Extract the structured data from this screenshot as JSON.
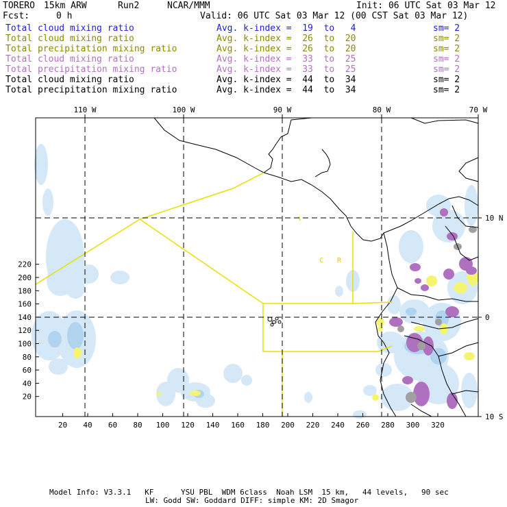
{
  "header": {
    "model": "TORERO",
    "resolution": "15km ARW",
    "run": "Run2",
    "org": "NCAR/MMM",
    "init": "Init: 06 UTC Sat 03 Mar 12",
    "fcst_label": "Fcst:",
    "fcst_value": "0 h",
    "valid": "Valid: 06 UTC Sat 03 Mar 12 (00 CST Sat 03 Mar 12)"
  },
  "legend": [
    {
      "field": "Total cloud mixing ratio",
      "kindex": "Avg. k-index =  19  to   4",
      "sm": "sm= 2",
      "color": "#1f1fcf"
    },
    {
      "field": "Total cloud mixing ratio",
      "kindex": "Avg. k-index =  26  to  20",
      "sm": "sm= 2",
      "color": "#8a8a00"
    },
    {
      "field": "Total precipitation mixing ratio",
      "kindex": "Avg. k-index =  26  to  20",
      "sm": "sm= 2",
      "color": "#8a8a00"
    },
    {
      "field": "Total cloud mixing ratio",
      "kindex": "Avg. k-index =  33  to  25",
      "sm": "sm= 2",
      "color": "#b070c0"
    },
    {
      "field": "Total precipitation mixing ratio",
      "kindex": "Avg. k-index =  33  to  25",
      "sm": "sm= 2",
      "color": "#b070c0"
    },
    {
      "field": "Total cloud mixing ratio",
      "kindex": "Avg. k-index =  44  to  34",
      "sm": "sm= 2",
      "color": "#000000"
    },
    {
      "field": "Total precipitation mixing ratio",
      "kindex": "Avg. k-index =  44  to  34",
      "sm": "sm= 2",
      "color": "#000000"
    }
  ],
  "map": {
    "top_lon_labels": [
      "110 W",
      "100 W",
      "90 W",
      "80 W",
      "70 W"
    ],
    "right_lat_labels": [
      "10 N",
      "0",
      "10 S"
    ],
    "x_ticks": [
      "20",
      "40",
      "60",
      "80",
      "100",
      "120",
      "140",
      "160",
      "180",
      "200",
      "220",
      "240",
      "260",
      "280",
      "300",
      "320"
    ],
    "y_ticks": [
      "20",
      "40",
      "60",
      "80",
      "100",
      "120",
      "140",
      "160",
      "180",
      "200",
      "220"
    ],
    "region_labels": [
      "C",
      "R"
    ],
    "colors": {
      "cloud_light": "#d4e8f8",
      "cloud_mid": "#b0d4f0",
      "precip_yellow": "#f4f470",
      "precip_purple": "#b070c0",
      "precip_gray": "#a0a0a0",
      "boundary_yellow": "#e8e000"
    }
  },
  "footer": {
    "line1": "Model Info: V3.3.1   KF      YSU PBL  WDM 6class  Noah LSM  15 km,   44 levels,   90 sec",
    "line2": "LW: Godd SW: Goddard DIFF: simple KM: 2D Smagor"
  }
}
